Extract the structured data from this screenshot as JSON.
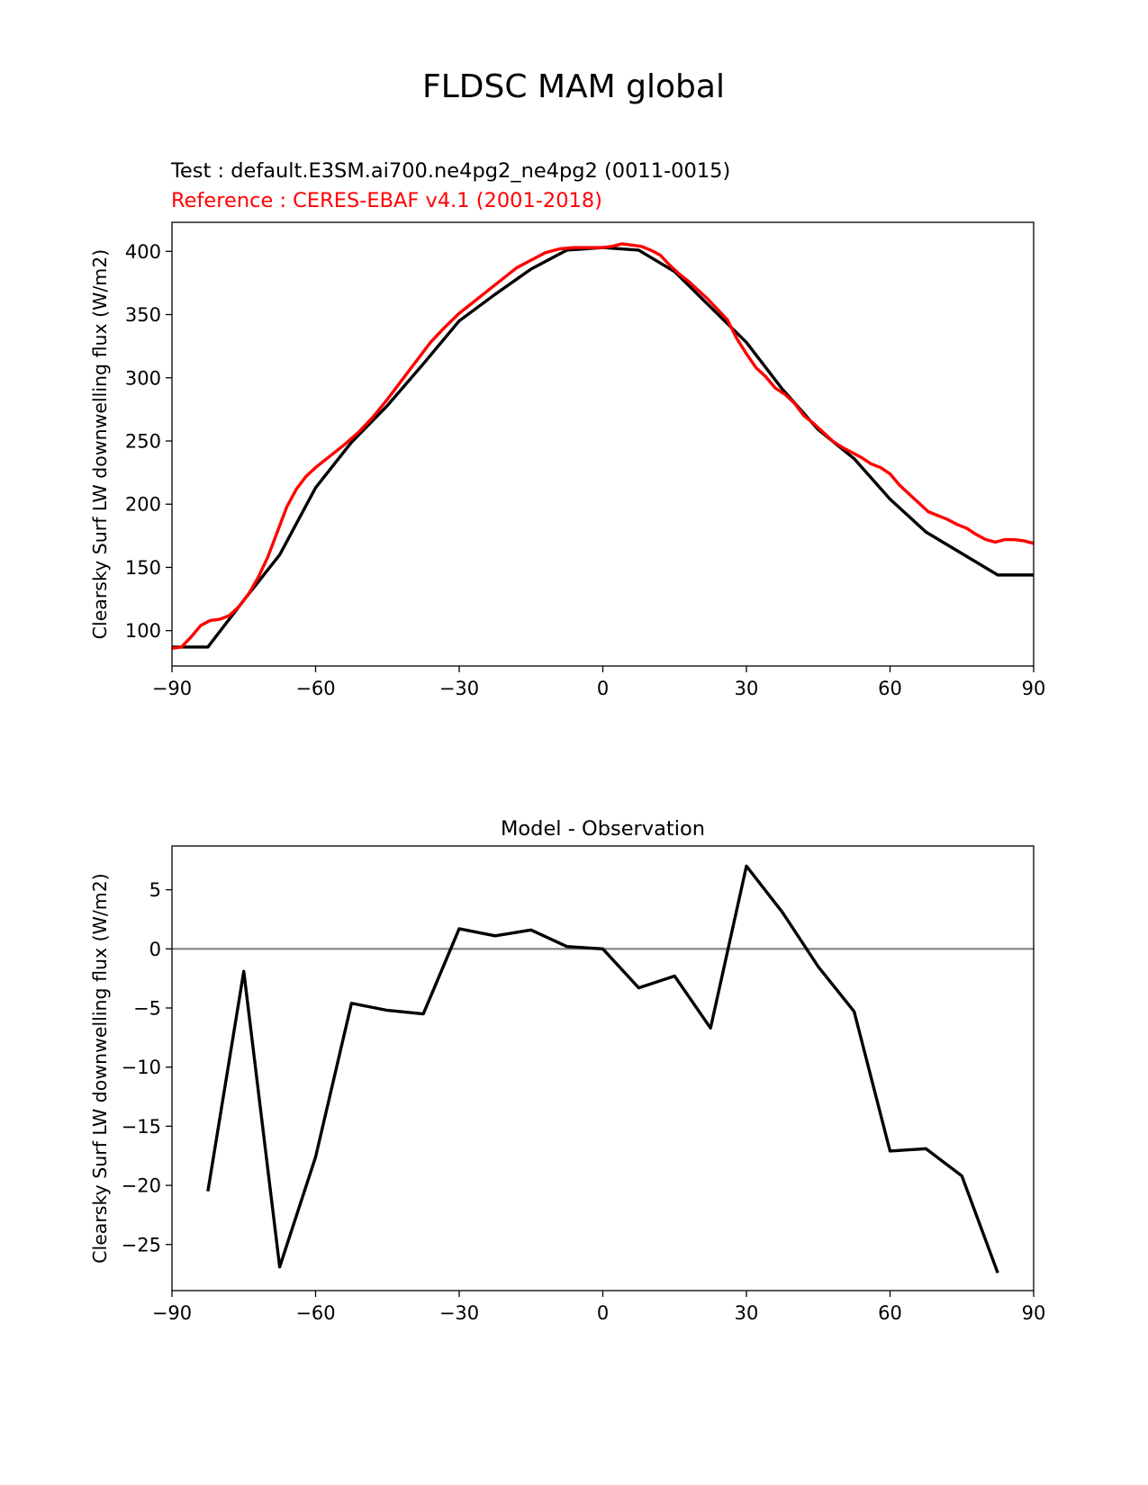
{
  "figure": {
    "suptitle": "FLDSC MAM global",
    "test_label": "Test : default.E3SM.ai700.ne4pg2_ne4pg2 (0011-0015)",
    "reference_label": "Reference : CERES-EBAF v4.1 (2001-2018)"
  },
  "colors": {
    "test": "#000000",
    "reference": "#ff0000",
    "zero_line": "#808080"
  },
  "chart_data": [
    {
      "type": "line",
      "title": "",
      "xlabel": "",
      "ylabel": "Clearsky Surf LW downwelling flux (W/m2)",
      "xlim": [
        -90,
        90
      ],
      "ylim": [
        72,
        423
      ],
      "xticks": [
        -90,
        -60,
        -30,
        0,
        30,
        60,
        90
      ],
      "xtick_labels": [
        "−90",
        "−60",
        "−30",
        "0",
        "30",
        "60",
        "90"
      ],
      "yticks": [
        100,
        150,
        200,
        250,
        300,
        350,
        400
      ],
      "ytick_labels": [
        "100",
        "150",
        "200",
        "250",
        "300",
        "350",
        "400"
      ],
      "grid": false,
      "series": [
        {
          "color": "#000000",
          "x": [
            -90,
            -82.5,
            -75,
            -67.5,
            -60,
            -52.5,
            -45,
            -37.5,
            -30,
            -22.5,
            -15,
            -7.5,
            0,
            7.5,
            15,
            22.5,
            30,
            37.5,
            45,
            52.5,
            60,
            67.5,
            75,
            82.5,
            90
          ],
          "y": [
            87,
            87,
            124,
            160,
            213,
            249,
            278,
            311,
            345,
            366,
            386,
            401,
            403,
            401,
            384,
            356,
            328,
            291,
            259,
            236,
            204,
            178,
            161,
            144,
            144
          ]
        },
        {
          "color": "#ff0000",
          "x": [
            -90,
            -88,
            -86,
            -84,
            -82,
            -80,
            -78,
            -76,
            -74,
            -72,
            -70,
            -68,
            -66,
            -64,
            -62,
            -60,
            -57,
            -54,
            -51,
            -48,
            -45,
            -42,
            -39,
            -36,
            -33,
            -30,
            -27,
            -24,
            -21,
            -18,
            -15,
            -12,
            -9,
            -6,
            -3,
            0,
            2,
            4,
            6,
            8,
            10,
            12,
            14,
            16,
            18,
            20,
            22,
            24,
            26,
            28,
            30,
            32,
            34,
            36,
            38,
            40,
            42,
            44,
            46,
            48,
            50,
            52,
            54,
            56,
            58,
            60,
            62,
            64,
            66,
            68,
            70,
            72,
            74,
            76,
            78,
            80,
            82,
            84,
            86,
            88,
            90
          ],
          "y": [
            86,
            87,
            95,
            104,
            108,
            109,
            112,
            119,
            129,
            142,
            158,
            178,
            198,
            212,
            222,
            229,
            238,
            247,
            257,
            269,
            283,
            298,
            313,
            328,
            340,
            351,
            360,
            369,
            378,
            387,
            393,
            399,
            402,
            403,
            403,
            403,
            404,
            406,
            405,
            404,
            401,
            397,
            389,
            382,
            376,
            369,
            362,
            354,
            346,
            331,
            319,
            308,
            301,
            292,
            287,
            280,
            270,
            264,
            257,
            250,
            245,
            241,
            237,
            232,
            229,
            224,
            215,
            208,
            201,
            194,
            191,
            188,
            184,
            181,
            176,
            172,
            170,
            172,
            172,
            171,
            169
          ]
        }
      ]
    },
    {
      "type": "line",
      "title": "Model - Observation",
      "xlabel": "",
      "ylabel": "Clearsky Surf LW downwelling flux (W/m2)",
      "xlim": [
        -90,
        90
      ],
      "ylim": [
        -28.9,
        8.7
      ],
      "xticks": [
        -90,
        -60,
        -30,
        0,
        30,
        60,
        90
      ],
      "xtick_labels": [
        "−90",
        "−60",
        "−30",
        "0",
        "30",
        "60",
        "90"
      ],
      "yticks": [
        -25,
        -20,
        -15,
        -10,
        -5,
        0,
        5
      ],
      "ytick_labels": [
        "−25",
        "−20",
        "−15",
        "−10",
        "−5",
        "0",
        "5"
      ],
      "grid": false,
      "zero_line": 0,
      "series": [
        {
          "color": "#000000",
          "x": [
            -82.5,
            -75,
            -67.5,
            -60,
            -52.5,
            -45,
            -37.5,
            -30,
            -22.5,
            -15,
            -7.5,
            0,
            7.5,
            15,
            22.5,
            30,
            37.5,
            45,
            52.5,
            60,
            67.5,
            75,
            82.5
          ],
          "y": [
            -20.5,
            -1.9,
            -26.9,
            -17.6,
            -4.6,
            -5.2,
            -5.5,
            1.7,
            1.1,
            1.6,
            0.2,
            0,
            -3.3,
            -2.3,
            -6.7,
            7.0,
            3.1,
            -1.5,
            -5.3,
            -17.1,
            -16.9,
            -19.2,
            -27.4
          ]
        }
      ]
    }
  ]
}
